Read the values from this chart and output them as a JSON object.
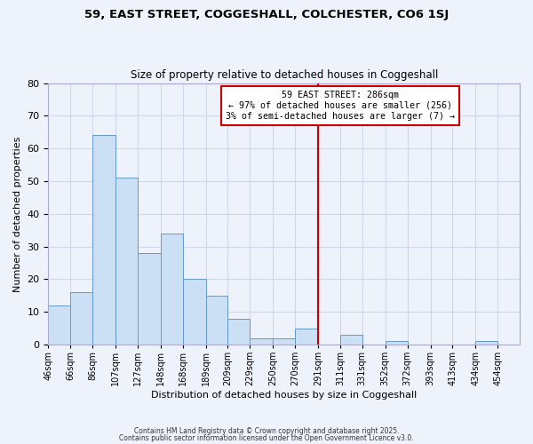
{
  "title": "59, EAST STREET, COGGESHALL, COLCHESTER, CO6 1SJ",
  "subtitle": "Size of property relative to detached houses in Coggeshall",
  "xlabel": "Distribution of detached houses by size in Coggeshall",
  "ylabel": "Number of detached properties",
  "bar_color": "#cce0f5",
  "bar_edge_color": "#6699cc",
  "bin_labels": [
    "46sqm",
    "66sqm",
    "86sqm",
    "107sqm",
    "127sqm",
    "148sqm",
    "168sqm",
    "189sqm",
    "209sqm",
    "229sqm",
    "250sqm",
    "270sqm",
    "291sqm",
    "311sqm",
    "331sqm",
    "352sqm",
    "372sqm",
    "393sqm",
    "413sqm",
    "434sqm",
    "454sqm"
  ],
  "bin_edges": [
    46,
    66,
    86,
    107,
    127,
    148,
    168,
    189,
    209,
    229,
    250,
    270,
    291,
    311,
    331,
    352,
    372,
    393,
    413,
    434,
    454,
    474
  ],
  "bar_heights": [
    12,
    16,
    64,
    51,
    28,
    34,
    20,
    15,
    8,
    2,
    2,
    5,
    0,
    3,
    0,
    1,
    0,
    0,
    0,
    1,
    0
  ],
  "vline_x": 291,
  "vline_color": "#cc0000",
  "annotation_title": "59 EAST STREET: 286sqm",
  "annotation_line1": "← 97% of detached houses are smaller (256)",
  "annotation_line2": "3% of semi-detached houses are larger (7) →",
  "annotation_box_color": "#ffffff",
  "annotation_box_edge": "#cc0000",
  "ylim": [
    0,
    80
  ],
  "yticks": [
    0,
    10,
    20,
    30,
    40,
    50,
    60,
    70,
    80
  ],
  "grid_color": "#d0d8e8",
  "background_color": "#eef2fa",
  "footer1": "Contains HM Land Registry data © Crown copyright and database right 2025.",
  "footer2": "Contains public sector information licensed under the Open Government Licence v3.0."
}
